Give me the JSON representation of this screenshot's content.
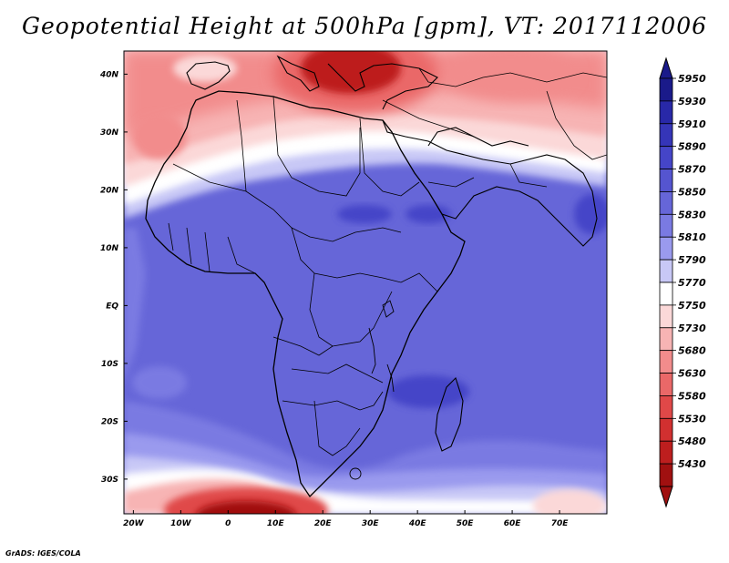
{
  "title": "Geopotential Height at 500hPa [gpm], VT: 2017112006",
  "credit": "GrADS: IGES/COLA",
  "map": {
    "lat_labels": [
      "40N",
      "30N",
      "20N",
      "10N",
      "EQ",
      "10S",
      "20S",
      "30S"
    ],
    "lat_values": [
      40,
      30,
      20,
      10,
      0,
      -10,
      -20,
      -30
    ],
    "lon_labels": [
      "20W",
      "10W",
      "0",
      "10E",
      "20E",
      "30E",
      "40E",
      "50E",
      "60E",
      "70E"
    ],
    "lon_values": [
      -20,
      -10,
      0,
      10,
      20,
      30,
      40,
      50,
      60,
      70
    ],
    "lon_range": [
      -22,
      80
    ],
    "lat_range": [
      -36,
      44
    ]
  },
  "colorbar": {
    "levels": [
      "5950",
      "5930",
      "5910",
      "5890",
      "5870",
      "5850",
      "5830",
      "5810",
      "5790",
      "5770",
      "5750",
      "5730",
      "5680",
      "5630",
      "5580",
      "5530",
      "5480",
      "5430"
    ],
    "colors": [
      "#1a1a8a",
      "#2828a8",
      "#3535b8",
      "#4545c8",
      "#5555d0",
      "#6666d8",
      "#7a7ae2",
      "#9a9aee",
      "#c8c8f6",
      "#ffffff",
      "#fbd8d8",
      "#f7b4b4",
      "#f28c8c",
      "#ea6868",
      "#e04848",
      "#d13030",
      "#bd1e1e",
      "#a01010"
    ]
  },
  "fields": {
    "upper_red_band": "#f28c8c",
    "deep_red_core": "#bd1e1e",
    "southern_red_core": "#a01010",
    "tropical_blue": "#6666d8",
    "dark_blue_patch": "#4545c8",
    "light_blue": "#9a9aee",
    "white_band": "#ffffff"
  }
}
